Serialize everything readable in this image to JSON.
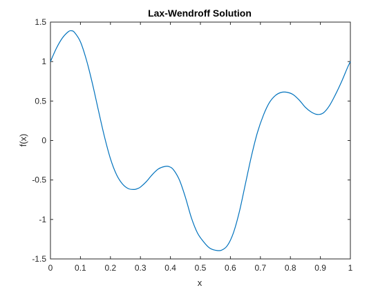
{
  "chart_data": {
    "type": "line",
    "title": "Lax-Wendroff Solution",
    "xlabel": "x",
    "ylabel": "f(x)",
    "xlim": [
      0,
      1
    ],
    "ylim": [
      -1.5,
      1.5
    ],
    "xticks": [
      0,
      0.1,
      0.2,
      0.3,
      0.4,
      0.5,
      0.6,
      0.7,
      0.8,
      0.9,
      1
    ],
    "xtick_labels": [
      "0",
      "0.1",
      "0.2",
      "0.3",
      "0.4",
      "0.5",
      "0.6",
      "0.7",
      "0.8",
      "0.9",
      "1"
    ],
    "yticks": [
      -1.5,
      -1,
      -0.5,
      0,
      0.5,
      1,
      1.5
    ],
    "ytick_labels": [
      "-1.5",
      "-1",
      "-0.5",
      "0",
      "0.5",
      "1",
      "1.5"
    ],
    "grid": false,
    "line_color": "#0072BD",
    "series": [
      {
        "x": [
          0,
          0.02,
          0.04,
          0.06,
          0.07,
          0.08,
          0.1,
          0.12,
          0.14,
          0.16,
          0.18,
          0.2,
          0.22,
          0.24,
          0.26,
          0.28,
          0.29,
          0.3,
          0.32,
          0.34,
          0.36,
          0.38,
          0.395,
          0.41,
          0.43,
          0.45,
          0.47,
          0.49,
          0.51,
          0.53,
          0.55,
          0.57,
          0.59,
          0.61,
          0.63,
          0.65,
          0.67,
          0.69,
          0.71,
          0.73,
          0.75,
          0.77,
          0.79,
          0.81,
          0.83,
          0.85,
          0.87,
          0.89,
          0.91,
          0.93,
          0.95,
          0.97,
          0.99,
          1
        ],
        "values": [
          1.0,
          1.17,
          1.3,
          1.38,
          1.39,
          1.37,
          1.25,
          1.02,
          0.72,
          0.38,
          0.05,
          -0.23,
          -0.43,
          -0.55,
          -0.61,
          -0.62,
          -0.61,
          -0.59,
          -0.52,
          -0.43,
          -0.36,
          -0.33,
          -0.33,
          -0.37,
          -0.5,
          -0.72,
          -0.98,
          -1.17,
          -1.28,
          -1.36,
          -1.39,
          -1.39,
          -1.33,
          -1.17,
          -0.9,
          -0.55,
          -0.2,
          0.1,
          0.32,
          0.48,
          0.57,
          0.61,
          0.61,
          0.58,
          0.51,
          0.42,
          0.36,
          0.33,
          0.35,
          0.44,
          0.58,
          0.74,
          0.92,
          1.0
        ]
      }
    ]
  }
}
